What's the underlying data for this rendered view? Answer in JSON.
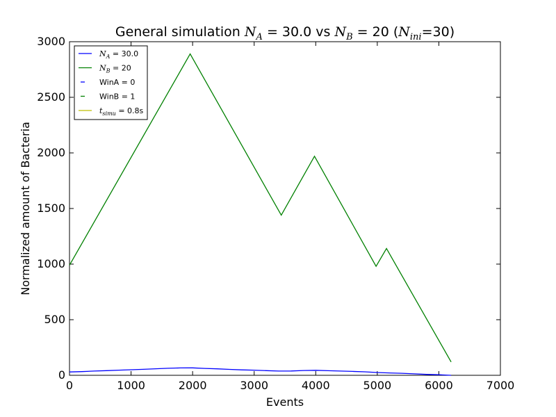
{
  "chart_data": {
    "type": "line",
    "title": {
      "prefix": "General simulation ",
      "a_sym": "N",
      "a_sub": "A",
      "a_val": " = 30.0 vs ",
      "b_sym": "N",
      "b_sub": "B",
      "b_val": " = 20 (",
      "ini_sym": "N",
      "ini_sub": "ini",
      "ini_val": "=30)"
    },
    "xlabel": "Events",
    "ylabel": "Normalized amount of Bacteria",
    "xlim": [
      0,
      7000
    ],
    "ylim": [
      0,
      3000
    ],
    "xticks": [
      "0",
      "1000",
      "2000",
      "3000",
      "4000",
      "5000",
      "6000",
      "7000"
    ],
    "yticks": [
      "0",
      "500",
      "1000",
      "1500",
      "2000",
      "2500",
      "3000"
    ],
    "grid": false,
    "legend_placement": "top-left",
    "series": [
      {
        "name": "N_A = 30.0",
        "color": "#0000ff",
        "x": [
          0,
          200,
          400,
          600,
          800,
          1000,
          1200,
          1400,
          1600,
          1800,
          2000,
          2200,
          2400,
          2600,
          2800,
          3000,
          3200,
          3400,
          3600,
          3800,
          4000,
          4200,
          4400,
          4600,
          4800,
          5000,
          5200,
          5400,
          5600,
          5800,
          6000,
          6200
        ],
        "y": [
          30,
          33,
          38,
          42,
          46,
          50,
          54,
          59,
          63,
          66,
          67,
          62,
          58,
          53,
          49,
          46,
          42,
          38,
          39,
          43,
          45,
          41,
          38,
          35,
          31,
          25,
          21,
          18,
          13,
          8,
          5,
          0
        ]
      },
      {
        "name": "N_B = 20",
        "color": "#008000",
        "x": [
          0,
          1960,
          3440,
          3980,
          4980,
          5150,
          6200
        ],
        "y": [
          990,
          2890,
          1440,
          1970,
          980,
          1140,
          120
        ]
      }
    ],
    "legend": [
      {
        "key": "na",
        "sym": "N",
        "sub": "A",
        "text": " = 30.0",
        "color": "#0000ff",
        "style": "solid"
      },
      {
        "key": "nb",
        "sym": "N",
        "sub": "B",
        "text": " = 20",
        "color": "#008000",
        "style": "solid"
      },
      {
        "key": "wina",
        "sym": "",
        "sub": "",
        "text": "WinA = 0",
        "color": "#0000ff",
        "style": "dash"
      },
      {
        "key": "winb",
        "sym": "",
        "sub": "",
        "text": "WinB = 1",
        "color": "#008000",
        "style": "dash"
      },
      {
        "key": "tsim",
        "sym": "t",
        "sub": "simu",
        "text": " = 0.8s",
        "color": "#bfbf00",
        "style": "solid"
      }
    ]
  }
}
